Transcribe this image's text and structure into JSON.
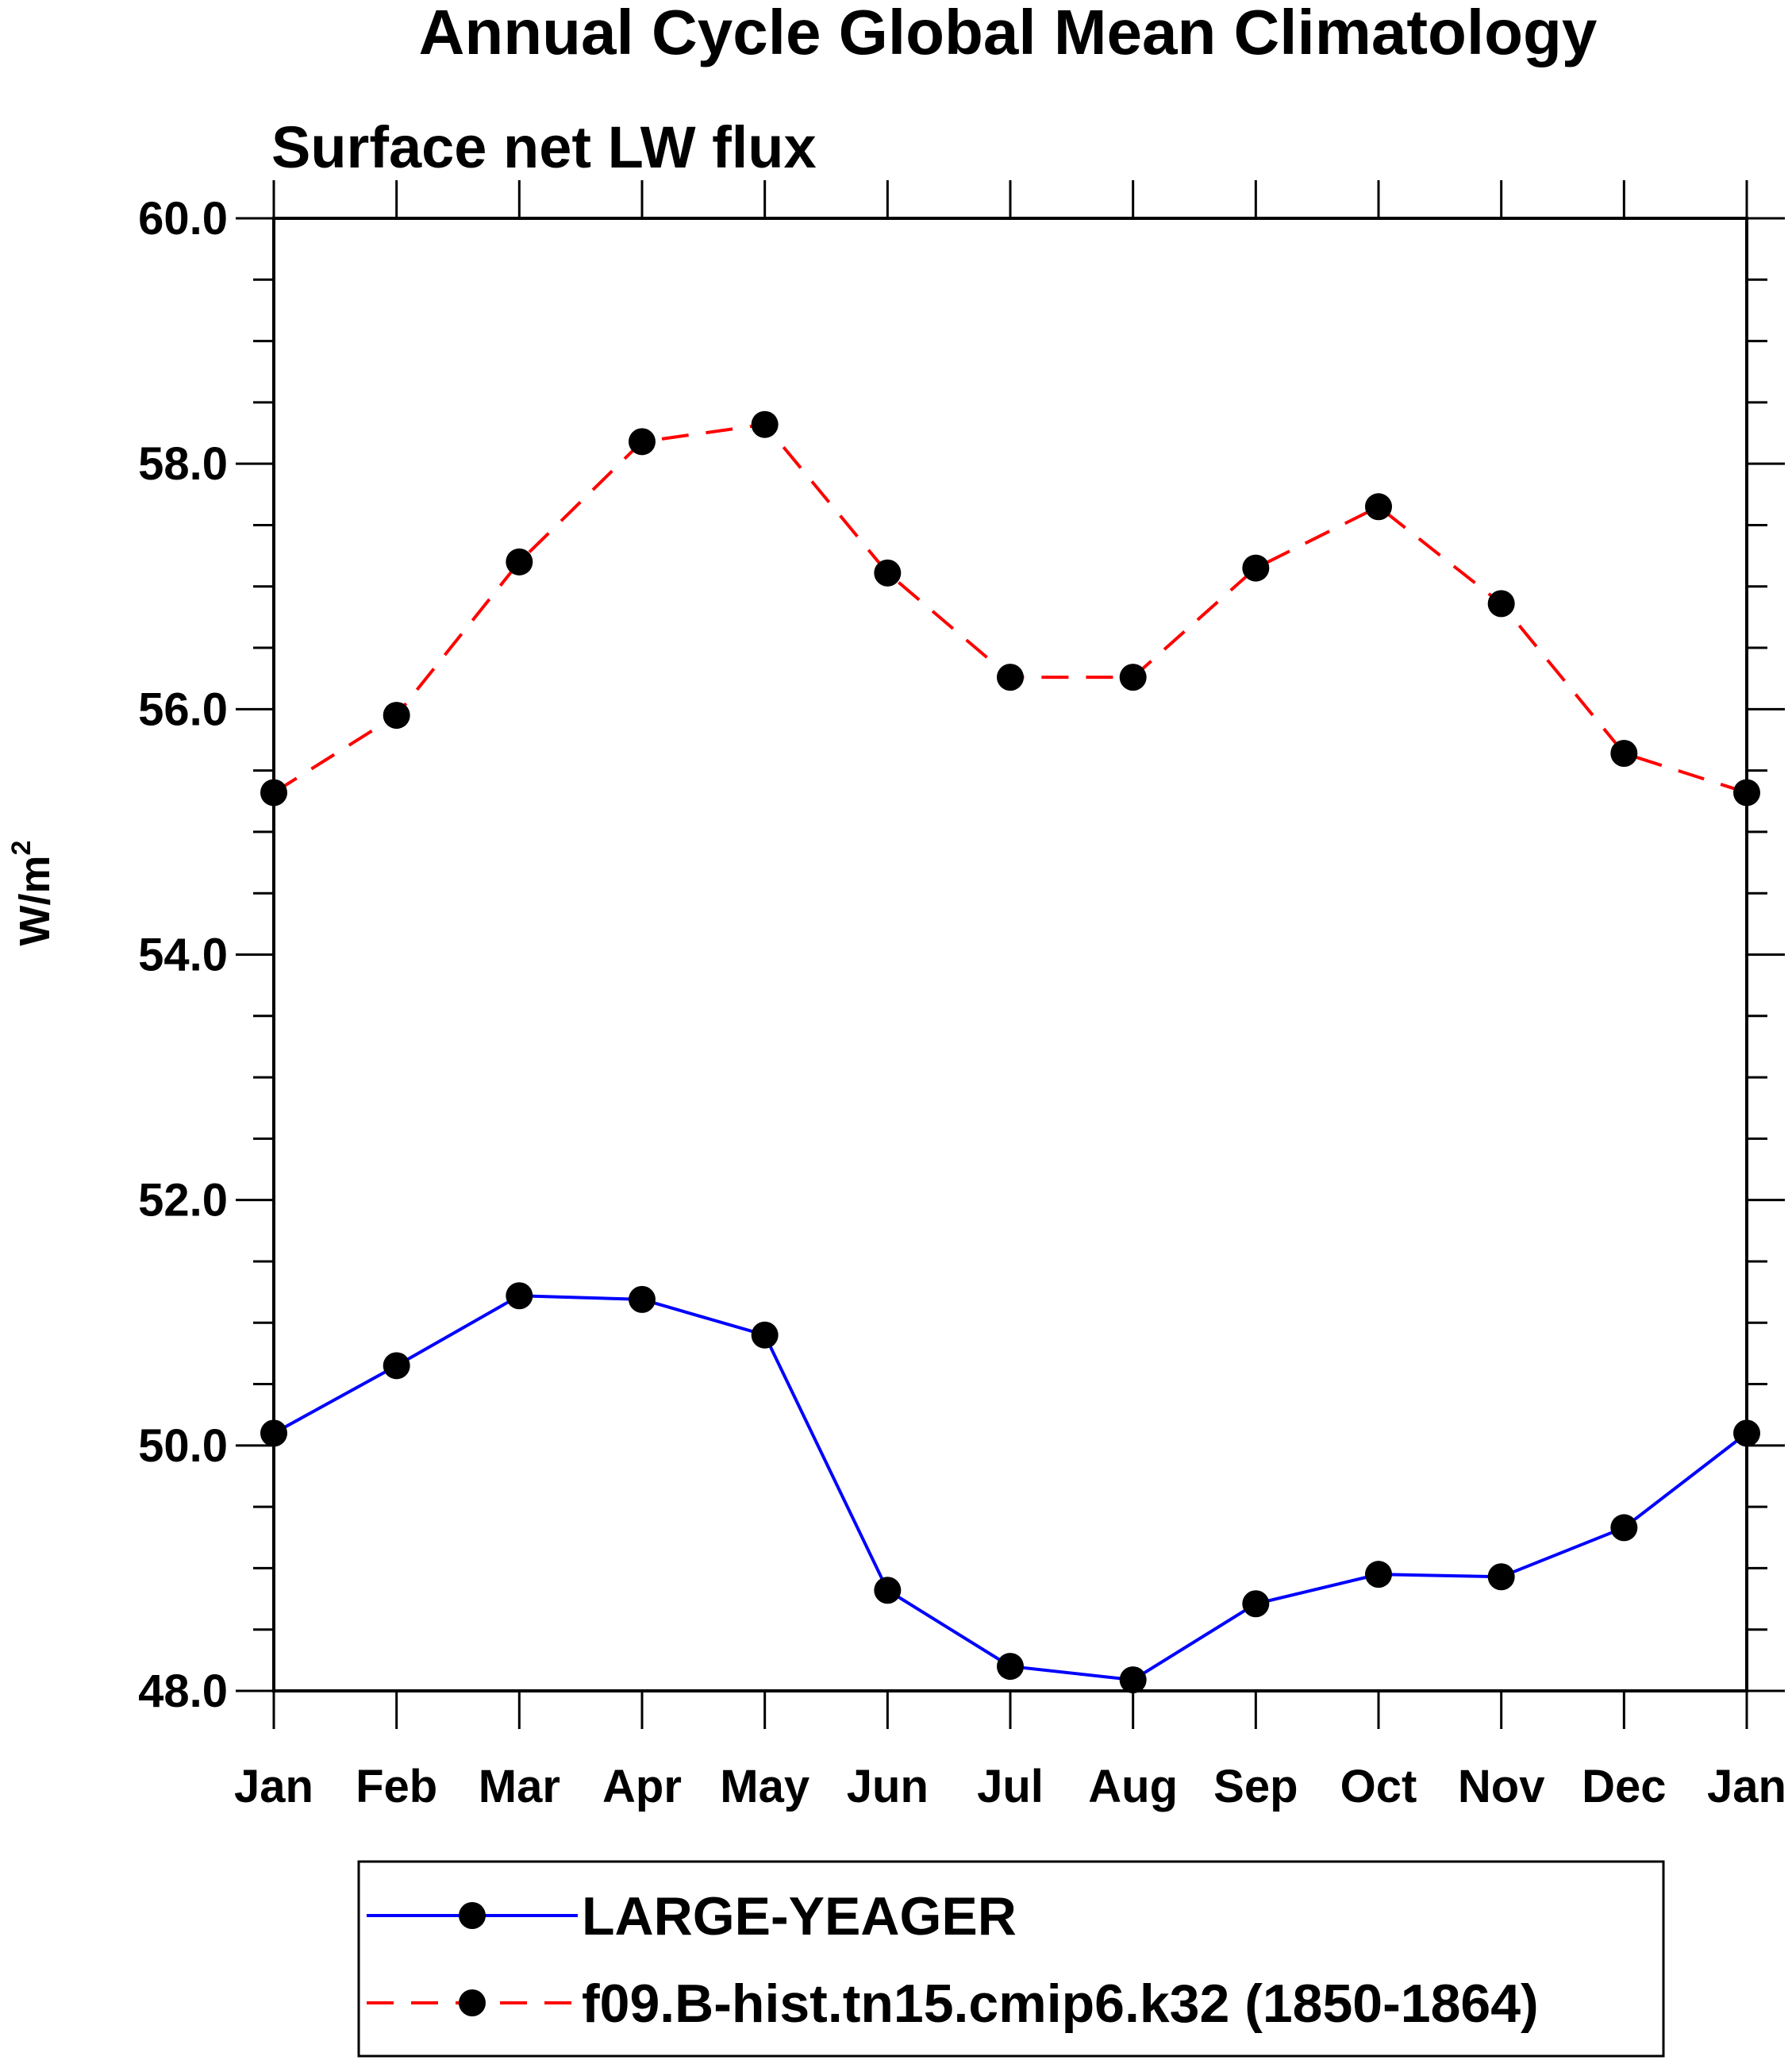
{
  "chart_data": {
    "type": "line",
    "title": "Annual Cycle Global Mean Climatology",
    "subtitle": "Surface net LW flux",
    "ylabel_base": "W/m",
    "ylabel_sup": "2",
    "xlabel": "",
    "categories": [
      "Jan",
      "Feb",
      "Mar",
      "Apr",
      "May",
      "Jun",
      "Jul",
      "Aug",
      "Sep",
      "Oct",
      "Nov",
      "Dec",
      "Jan"
    ],
    "ylim": [
      48.0,
      60.0
    ],
    "yticks": [
      "48.0",
      "50.0",
      "52.0",
      "54.0",
      "56.0",
      "58.0",
      "60.0"
    ],
    "ytick_values": [
      48,
      50,
      52,
      54,
      56,
      58,
      60
    ],
    "series": [
      {
        "name": "LARGE-YEAGER",
        "color": "#0000ff",
        "dash": "solid",
        "values": [
          50.1,
          50.65,
          51.22,
          51.19,
          50.9,
          48.82,
          48.2,
          48.09,
          48.71,
          48.95,
          48.93,
          49.33,
          50.1
        ]
      },
      {
        "name": "f09.B-hist.tn15.cmip6.k32 (1850-1864)",
        "color": "#ff0000",
        "dash": "dashed",
        "values": [
          55.32,
          55.95,
          57.2,
          58.18,
          58.32,
          57.11,
          56.26,
          56.26,
          57.15,
          57.65,
          56.86,
          55.64,
          55.32
        ]
      }
    ],
    "marker_color": "#000000",
    "legend_position": "bottom"
  }
}
